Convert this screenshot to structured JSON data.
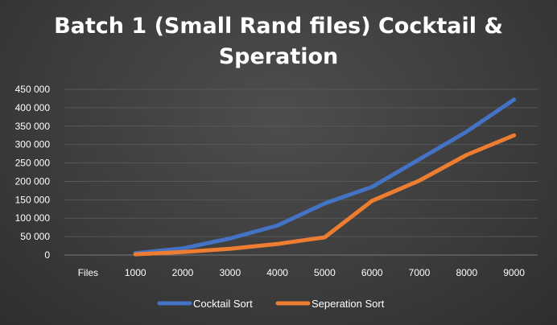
{
  "chart_data": {
    "type": "line",
    "title": [
      "Batch 1 (Small Rand files) Cocktail &",
      "Speration"
    ],
    "categories": [
      "Files",
      "1000",
      "2000",
      "3000",
      "4000",
      "5000",
      "6000",
      "7000",
      "8000",
      "9000"
    ],
    "y_tick_labels": [
      "0",
      "50 000",
      "100 000",
      "150 000",
      "200 000",
      "250 000",
      "300 000",
      "350 000",
      "400 000",
      "450 000"
    ],
    "ylim": [
      0,
      450000
    ],
    "grid": true,
    "legend_position": "bottom",
    "series": [
      {
        "name": "Cocktail Sort",
        "color": "#4472c4",
        "values": [
          null,
          5000,
          18000,
          45000,
          80000,
          140000,
          185000,
          260000,
          335000,
          422000
        ]
      },
      {
        "name": "Seperation Sort",
        "color": "#ed7d31",
        "values": [
          null,
          2000,
          8000,
          17000,
          30000,
          48000,
          147000,
          202000,
          272000,
          325000
        ]
      }
    ]
  }
}
